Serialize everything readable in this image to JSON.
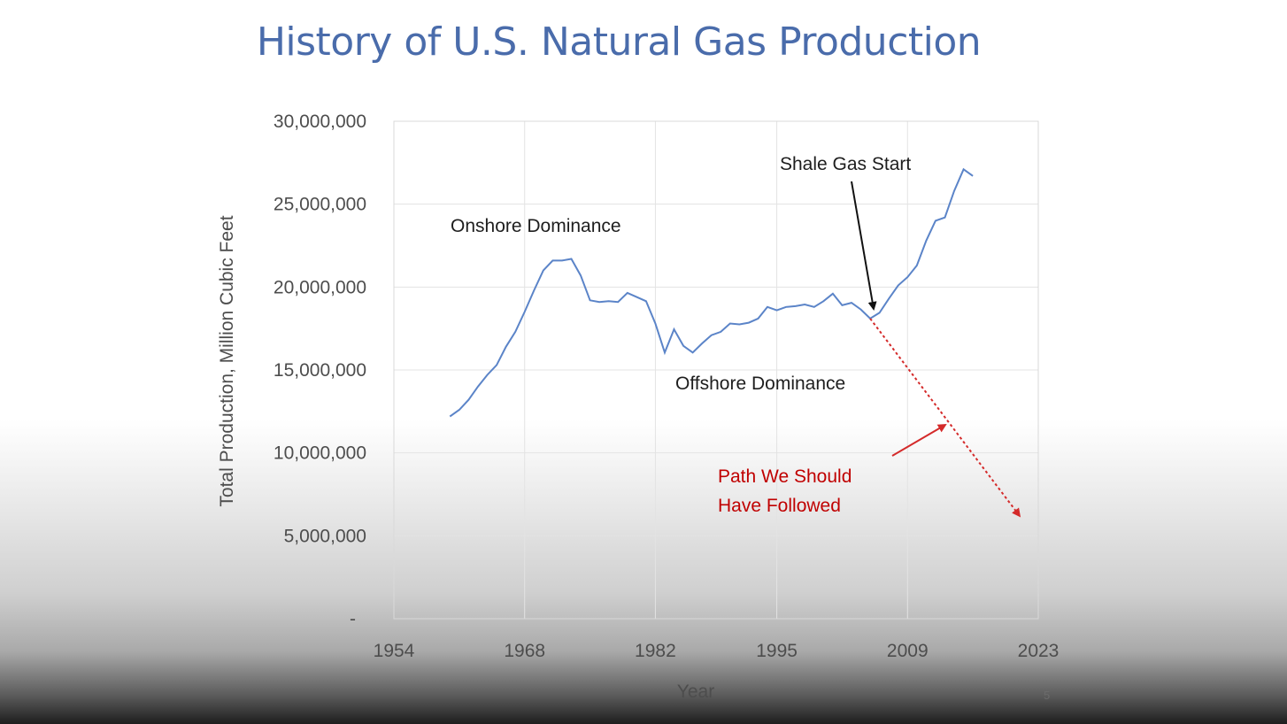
{
  "slide": {
    "title": "History of U.S. Natural Gas Production",
    "page_number": "5"
  },
  "colors": {
    "title": "#4a6cab",
    "series_line": "#5b84c8",
    "projection": "#d42a2a",
    "grid": "#e3e3e3",
    "annotation_red": "#c00000"
  },
  "chart_data": {
    "type": "line",
    "title": "",
    "xlabel": "Year",
    "ylabel": "Total Production, Million Cubic Feet",
    "xlim": [
      1954,
      2023
    ],
    "ylim": [
      0,
      30000000
    ],
    "x_ticks": [
      1954,
      1968,
      1982,
      1995,
      2009,
      2023
    ],
    "x_tick_labels": [
      "1954",
      "1968",
      "1982",
      "1995",
      "2009",
      "2023"
    ],
    "y_ticks": [
      0,
      5000000,
      10000000,
      15000000,
      20000000,
      25000000,
      30000000
    ],
    "y_tick_labels": [
      "-",
      "5,000,000",
      "10,000,000",
      "15,000,000",
      "20,000,000",
      "25,000,000",
      "30,000,000"
    ],
    "grid": true,
    "legend": "none",
    "series": [
      {
        "x": [
          1960,
          1961,
          1962,
          1963,
          1964,
          1965,
          1966,
          1967,
          1968,
          1969,
          1970,
          1971,
          1972,
          1973,
          1974,
          1975,
          1976,
          1977,
          1978,
          1979,
          1980,
          1981,
          1982,
          1983,
          1984,
          1985,
          1986,
          1987,
          1988,
          1989,
          1990,
          1991,
          1992,
          1993,
          1994,
          1995,
          1996,
          1997,
          1998,
          1999,
          2000,
          2001,
          2002,
          2003,
          2004,
          2005,
          2006,
          2007,
          2008,
          2009,
          2010,
          2011,
          2012,
          2013,
          2014,
          2015,
          2016,
          2017
        ],
        "values": [
          12200000,
          12600000,
          13200000,
          14000000,
          14700000,
          15300000,
          16400000,
          17300000,
          18500000,
          19800000,
          21000000,
          21600000,
          21600000,
          21700000,
          20700000,
          19200000,
          19100000,
          19150000,
          19100000,
          19650000,
          19400000,
          19150000,
          17800000,
          16050000,
          17450000,
          16450000,
          16050000,
          16600000,
          17100000,
          17300000,
          17800000,
          17750000,
          17850000,
          18100000,
          18800000,
          18600000,
          18800000,
          18850000,
          18950000,
          18800000,
          19150000,
          19600000,
          18900000,
          19050000,
          18650000,
          18100000,
          18450000,
          19300000,
          20100000,
          20600000,
          21300000,
          22800000,
          24000000,
          24200000,
          25800000,
          27100000,
          26700000,
          null
        ]
      }
    ],
    "projection": {
      "x": [
        2005,
        2021
      ],
      "values": [
        18100000,
        6200000
      ]
    },
    "annotations": [
      "Onshore Dominance",
      "Offshore Dominance",
      "Shale Gas Start",
      "Path We Should",
      "Have Followed"
    ]
  }
}
